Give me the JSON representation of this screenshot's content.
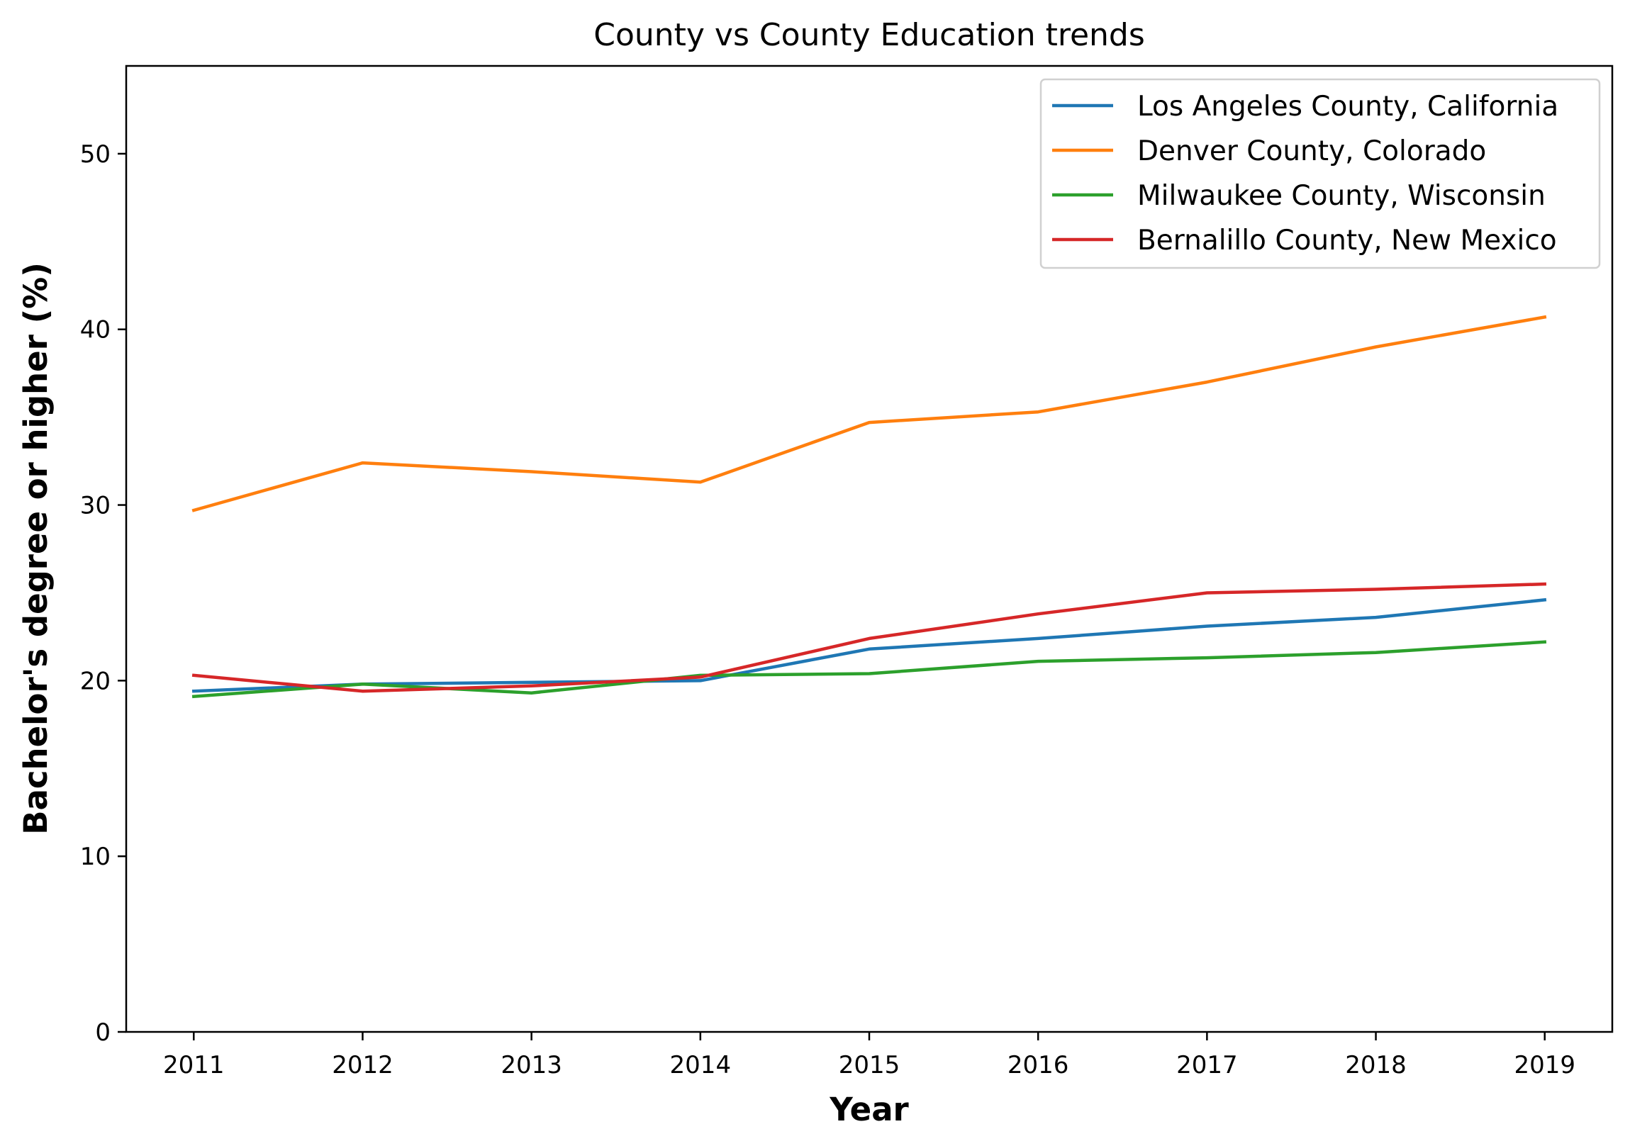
{
  "chart_data": {
    "type": "line",
    "title": "County vs County Education trends",
    "xlabel": "Year",
    "ylabel": "Bachelor's degree or higher (%)",
    "x": [
      2011,
      2012,
      2013,
      2014,
      2015,
      2016,
      2017,
      2018,
      2019
    ],
    "x_tick_labels": [
      "2011",
      "2012",
      "2013",
      "2014",
      "2015",
      "2016",
      "2017",
      "2018",
      "2019"
    ],
    "xlim": [
      2010.6,
      2019.4
    ],
    "ylim": [
      0,
      55
    ],
    "y_ticks": [
      0,
      10,
      20,
      30,
      40,
      50
    ],
    "y_tick_labels": [
      "0",
      "10",
      "20",
      "30",
      "40",
      "50"
    ],
    "grid": false,
    "legend_position": "top-right",
    "series": [
      {
        "name": "Los Angeles County, California",
        "color": "#1f77b4",
        "values": [
          19.4,
          19.8,
          19.9,
          20.0,
          21.8,
          22.4,
          23.1,
          23.6,
          24.6
        ]
      },
      {
        "name": "Denver County, Colorado",
        "color": "#ff7f0e",
        "values": [
          29.7,
          32.4,
          31.9,
          31.3,
          34.7,
          35.3,
          37.0,
          39.0,
          40.7
        ]
      },
      {
        "name": "Milwaukee County, Wisconsin",
        "color": "#2ca02c",
        "values": [
          19.1,
          19.8,
          19.3,
          20.3,
          20.4,
          21.1,
          21.3,
          21.6,
          22.2
        ]
      },
      {
        "name": "Bernalillo County, New Mexico",
        "color": "#d62728",
        "values": [
          20.3,
          19.4,
          19.7,
          20.2,
          22.4,
          23.8,
          25.0,
          25.2,
          25.5
        ]
      }
    ]
  }
}
